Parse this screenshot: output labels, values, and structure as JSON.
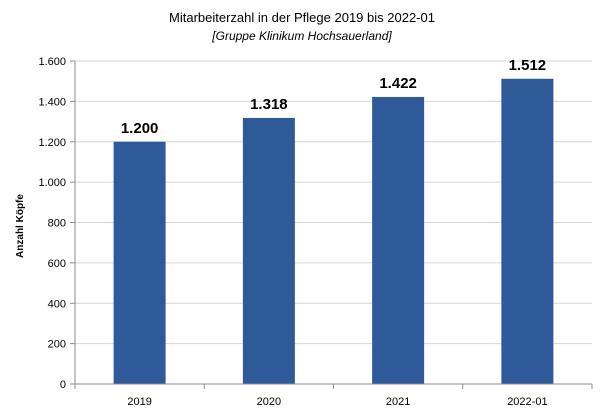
{
  "chart_data": {
    "type": "bar",
    "title": "Mitarbeiterzahl in der Pflege 2019 bis 2022-01",
    "subtitle": "[Gruppe Klinikum Hochsauerland]",
    "xlabel": "",
    "ylabel": "Anzahl Köpfe",
    "categories": [
      "2019",
      "2020",
      "2021",
      "2022-01"
    ],
    "values": [
      1200,
      1318,
      1422,
      1512
    ],
    "data_labels": [
      "1.200",
      "1.318",
      "1.422",
      "1.512"
    ],
    "ylim": [
      0,
      1600
    ],
    "yticks": [
      0,
      200,
      400,
      600,
      800,
      1000,
      1200,
      1400,
      1600
    ],
    "ytick_labels": [
      "0",
      "200",
      "400",
      "600",
      "800",
      "1.000",
      "1.200",
      "1.400",
      "1.600"
    ],
    "grid": true,
    "legend": "none",
    "bar_color": "#2E5A99",
    "grid_color": "#D6D6D6",
    "axis_color": "#8C8C8C"
  }
}
